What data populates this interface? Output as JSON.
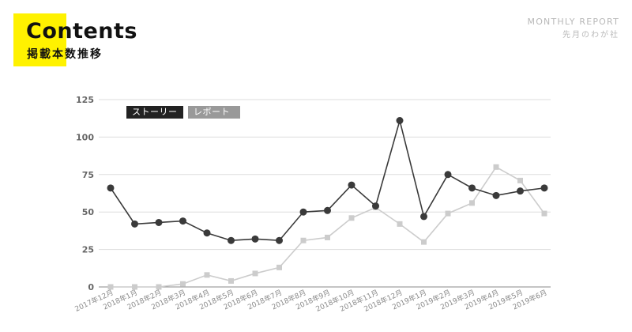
{
  "header": {
    "title": "Contents",
    "subtitle": "掲載本数推移",
    "report_label": "MONTHLY REPORT",
    "report_sub": "先月のわが社"
  },
  "colors": {
    "accent": "#fff200",
    "series_dark": "#3a3a3a",
    "series_light": "#cccccc",
    "grid": "#dddddd"
  },
  "chart_data": {
    "type": "line",
    "categories": [
      "2017年12月",
      "2018年1月",
      "2018年2月",
      "2018年3月",
      "2018年4月",
      "2018年5月",
      "2018年6月",
      "2018年7月",
      "2018年8月",
      "2018年9月",
      "2018年10月",
      "2018年11月",
      "2018年12月",
      "2019年1月",
      "2019年2月",
      "2019年3月",
      "2019年4月",
      "2019年5月",
      "2019年6月"
    ],
    "series": [
      {
        "name": "ストーリー",
        "marker": "circle",
        "values": [
          66,
          42,
          43,
          44,
          36,
          31,
          32,
          31,
          50,
          51,
          68,
          54,
          111,
          47,
          75,
          66,
          61,
          64,
          66
        ]
      },
      {
        "name": "レポート",
        "marker": "square",
        "values": [
          0,
          0,
          0,
          2,
          8,
          4,
          9,
          13,
          31,
          33,
          46,
          53,
          42,
          30,
          49,
          56,
          80,
          71,
          49
        ]
      }
    ],
    "ylim": [
      0,
      125
    ],
    "yticks": [
      0,
      25,
      50,
      75,
      100,
      125
    ],
    "grid": true,
    "legend": "top-left"
  }
}
